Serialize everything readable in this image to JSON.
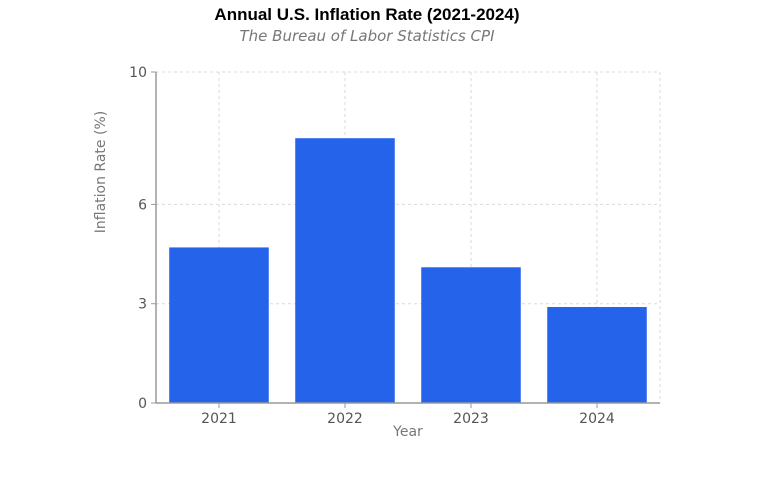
{
  "chart_data": {
    "type": "bar",
    "title": "Annual U.S. Inflation Rate (2021-2024)",
    "subtitle": "The Bureau of Labor Statistics CPI",
    "xlabel": "Year",
    "ylabel": "Inflation Rate (%)",
    "categories": [
      "2021",
      "2022",
      "2023",
      "2024"
    ],
    "values": [
      4.7,
      8.0,
      4.1,
      2.9
    ],
    "ylim": [
      0,
      10
    ],
    "yticks": [
      0,
      3,
      6,
      10
    ],
    "grid": true,
    "legend": "none",
    "colors": {
      "bar": "#2563eb"
    }
  }
}
